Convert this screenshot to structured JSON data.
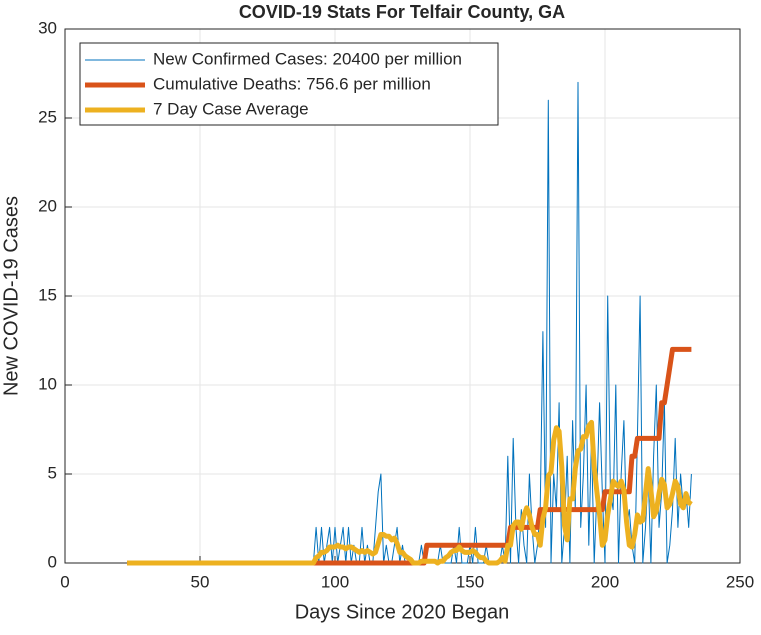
{
  "chart_data": {
    "type": "line",
    "title": "COVID-19 Stats For Telfair County, GA",
    "xlabel": "Days Since 2020 Began",
    "ylabel": "New COVID-19 Cases",
    "x": [
      23,
      24,
      25,
      26,
      27,
      28,
      29,
      30,
      31,
      32,
      33,
      34,
      35,
      36,
      37,
      38,
      39,
      40,
      41,
      42,
      43,
      44,
      45,
      46,
      47,
      48,
      49,
      50,
      51,
      52,
      53,
      54,
      55,
      56,
      57,
      58,
      59,
      60,
      61,
      62,
      63,
      64,
      65,
      66,
      67,
      68,
      69,
      70,
      71,
      72,
      73,
      74,
      75,
      76,
      77,
      78,
      79,
      80,
      81,
      82,
      83,
      84,
      85,
      86,
      87,
      88,
      89,
      90,
      91,
      92,
      93,
      94,
      95,
      96,
      97,
      98,
      99,
      100,
      101,
      102,
      103,
      104,
      105,
      106,
      107,
      108,
      109,
      110,
      111,
      112,
      113,
      114,
      115,
      116,
      117,
      118,
      119,
      120,
      121,
      122,
      123,
      124,
      125,
      126,
      127,
      128,
      129,
      130,
      131,
      132,
      133,
      134,
      135,
      136,
      137,
      138,
      139,
      140,
      141,
      142,
      143,
      144,
      145,
      146,
      147,
      148,
      149,
      150,
      151,
      152,
      153,
      154,
      155,
      156,
      157,
      158,
      159,
      160,
      161,
      162,
      163,
      164,
      165,
      166,
      167,
      168,
      169,
      170,
      171,
      172,
      173,
      174,
      175,
      176,
      177,
      178,
      179,
      180,
      181,
      182,
      183,
      184,
      185,
      186,
      187,
      188,
      189,
      190,
      191,
      192,
      193,
      194,
      195,
      196,
      197,
      198,
      199,
      200,
      201,
      202,
      203,
      204,
      205,
      206,
      207,
      208,
      209,
      210,
      211,
      212,
      213,
      214,
      215,
      216,
      217,
      218,
      219,
      220,
      221,
      222,
      223,
      224,
      225,
      226,
      227,
      228,
      229,
      230,
      231,
      232
    ],
    "series": [
      {
        "name": "New Confirmed Cases: 20400 per million",
        "color": "#0072bd",
        "width": 1,
        "values": [
          0,
          0,
          0,
          0,
          0,
          0,
          0,
          0,
          0,
          0,
          0,
          0,
          0,
          0,
          0,
          0,
          0,
          0,
          0,
          0,
          0,
          0,
          0,
          0,
          0,
          0,
          0,
          0,
          0,
          0,
          0,
          0,
          0,
          0,
          0,
          0,
          0,
          0,
          0,
          0,
          0,
          0,
          0,
          0,
          0,
          0,
          0,
          0,
          0,
          0,
          0,
          0,
          0,
          0,
          0,
          0,
          0,
          0,
          0,
          0,
          0,
          0,
          0,
          0,
          0,
          0,
          0,
          0,
          0,
          0,
          2,
          0,
          2,
          0,
          1,
          2,
          0,
          2,
          0,
          1,
          2,
          0,
          2,
          0,
          1,
          0,
          0,
          2,
          0,
          1,
          0,
          0,
          2,
          4,
          5,
          0,
          1,
          0,
          0,
          1,
          2,
          0,
          1,
          0,
          0,
          0,
          0,
          0,
          0,
          1,
          0,
          0,
          0,
          0,
          0,
          0,
          1,
          0,
          0,
          0,
          0,
          1,
          0,
          2,
          0,
          0,
          0,
          1,
          0,
          2,
          0,
          0,
          0,
          1,
          0,
          0,
          0,
          0,
          0,
          1,
          0,
          6,
          0,
          7,
          2,
          0,
          3,
          1,
          0,
          5,
          2,
          0,
          1,
          3,
          13,
          2,
          26,
          0,
          5,
          3,
          9,
          0,
          2,
          6,
          0,
          8,
          3,
          27,
          2,
          5,
          10,
          1,
          7,
          0,
          4,
          9,
          4,
          0,
          15,
          4,
          3,
          10,
          0,
          5,
          8,
          2,
          3,
          1,
          0,
          7,
          15,
          0,
          2,
          5,
          0,
          6,
          10,
          2,
          4,
          9,
          0,
          1,
          3,
          7,
          2,
          5,
          3,
          4,
          2,
          5
        ]
      },
      {
        "name": "Cumulative Deaths: 756.6 per million",
        "color": "#d95319",
        "width": 5,
        "values": [
          0,
          0,
          0,
          0,
          0,
          0,
          0,
          0,
          0,
          0,
          0,
          0,
          0,
          0,
          0,
          0,
          0,
          0,
          0,
          0,
          0,
          0,
          0,
          0,
          0,
          0,
          0,
          0,
          0,
          0,
          0,
          0,
          0,
          0,
          0,
          0,
          0,
          0,
          0,
          0,
          0,
          0,
          0,
          0,
          0,
          0,
          0,
          0,
          0,
          0,
          0,
          0,
          0,
          0,
          0,
          0,
          0,
          0,
          0,
          0,
          0,
          0,
          0,
          0,
          0,
          0,
          0,
          0,
          0,
          0,
          0,
          0,
          0,
          0,
          0,
          0,
          0,
          0,
          0,
          0,
          0,
          0,
          0,
          0,
          0,
          0,
          0,
          0,
          0,
          0,
          0,
          0,
          0,
          0,
          0,
          0,
          0,
          0,
          0,
          0,
          0,
          0,
          0,
          0,
          0,
          0,
          0,
          0,
          0,
          0,
          0,
          1,
          1,
          1,
          1,
          1,
          1,
          1,
          1,
          1,
          1,
          1,
          1,
          1,
          1,
          1,
          1,
          1,
          1,
          1,
          1,
          1,
          1,
          1,
          1,
          1,
          1,
          1,
          1,
          1,
          1,
          1,
          2,
          2,
          2,
          2,
          2,
          2,
          2,
          2,
          2,
          2,
          2,
          3,
          3,
          3,
          3,
          3,
          3,
          3,
          3,
          3,
          3,
          3,
          3,
          3,
          3,
          3,
          3,
          3,
          3,
          3,
          3,
          3,
          3,
          3,
          3,
          4,
          4,
          4,
          4,
          4,
          4,
          4,
          4,
          4,
          4,
          6,
          6,
          7,
          7,
          7,
          7,
          7,
          7,
          7,
          7,
          7,
          9,
          9,
          10,
          11,
          12,
          12,
          12,
          12,
          12,
          12,
          12,
          12
        ]
      },
      {
        "name": "7 Day Case Average",
        "color": "#edb120",
        "width": 5,
        "values": [
          0,
          0,
          0,
          0,
          0,
          0,
          0,
          0,
          0,
          0,
          0,
          0,
          0,
          0,
          0,
          0,
          0,
          0,
          0,
          0,
          0,
          0,
          0,
          0,
          0,
          0,
          0,
          0,
          0,
          0,
          0,
          0,
          0,
          0,
          0,
          0,
          0,
          0,
          0,
          0,
          0,
          0,
          0,
          0,
          0,
          0,
          0,
          0,
          0,
          0,
          0,
          0,
          0,
          0,
          0,
          0,
          0,
          0,
          0,
          0,
          0,
          0,
          0,
          0,
          0,
          0,
          0,
          0,
          0,
          0,
          0.3,
          0.4,
          0.6,
          0.6,
          0.7,
          0.9,
          0.9,
          0.9,
          1,
          0.9,
          0.9,
          0.8,
          0.9,
          0.9,
          0.8,
          0.7,
          0.6,
          0.7,
          0.6,
          0.7,
          0.6,
          0.5,
          0.6,
          1.1,
          1.6,
          1.6,
          1.5,
          1.5,
          1.3,
          1.4,
          1.1,
          0.6,
          0.6,
          0.4,
          0.3,
          0.2,
          0,
          0,
          0,
          0.1,
          0.1,
          0.1,
          0.1,
          0.1,
          0.1,
          0,
          0.1,
          0.1,
          0.3,
          0.4,
          0.6,
          0.7,
          0.7,
          0.9,
          0.7,
          0.6,
          0.6,
          0.6,
          0.7,
          0.6,
          0.4,
          0.3,
          0.3,
          0.1,
          0,
          0,
          0,
          0,
          0.1,
          0.3,
          0.1,
          1,
          1,
          2.1,
          2.3,
          2.3,
          1.9,
          2.7,
          3.1,
          2.7,
          2,
          1.6,
          1.6,
          1,
          2.5,
          3.1,
          4.9,
          5.1,
          6.9,
          7.6,
          7.4,
          5.4,
          2.1,
          1.3,
          3.6,
          3.6,
          5.3,
          6.3,
          6.4,
          7.1,
          7.1,
          7.7,
          7.9,
          5.4,
          4,
          2.7,
          1,
          1.3,
          2.7,
          3.6,
          4.6,
          4.4,
          4.3,
          4.6,
          4.1,
          2.3,
          1,
          0.9,
          1.6,
          2.7,
          2.3,
          2.4,
          3.9,
          5.3,
          4.1,
          2.6,
          2.9,
          3.9,
          4.7,
          4.4,
          3.1,
          3.3,
          3.9,
          4.6,
          4.3,
          3.3,
          3.1,
          3.9,
          3.4,
          3.3
        ]
      }
    ],
    "xlim": [
      0,
      250
    ],
    "xticks": [
      0,
      50,
      100,
      150,
      200,
      250
    ],
    "ylim": [
      0,
      30
    ],
    "yticks": [
      0,
      5,
      10,
      15,
      20,
      25,
      30
    ],
    "grid": true,
    "legend": "upper left"
  }
}
